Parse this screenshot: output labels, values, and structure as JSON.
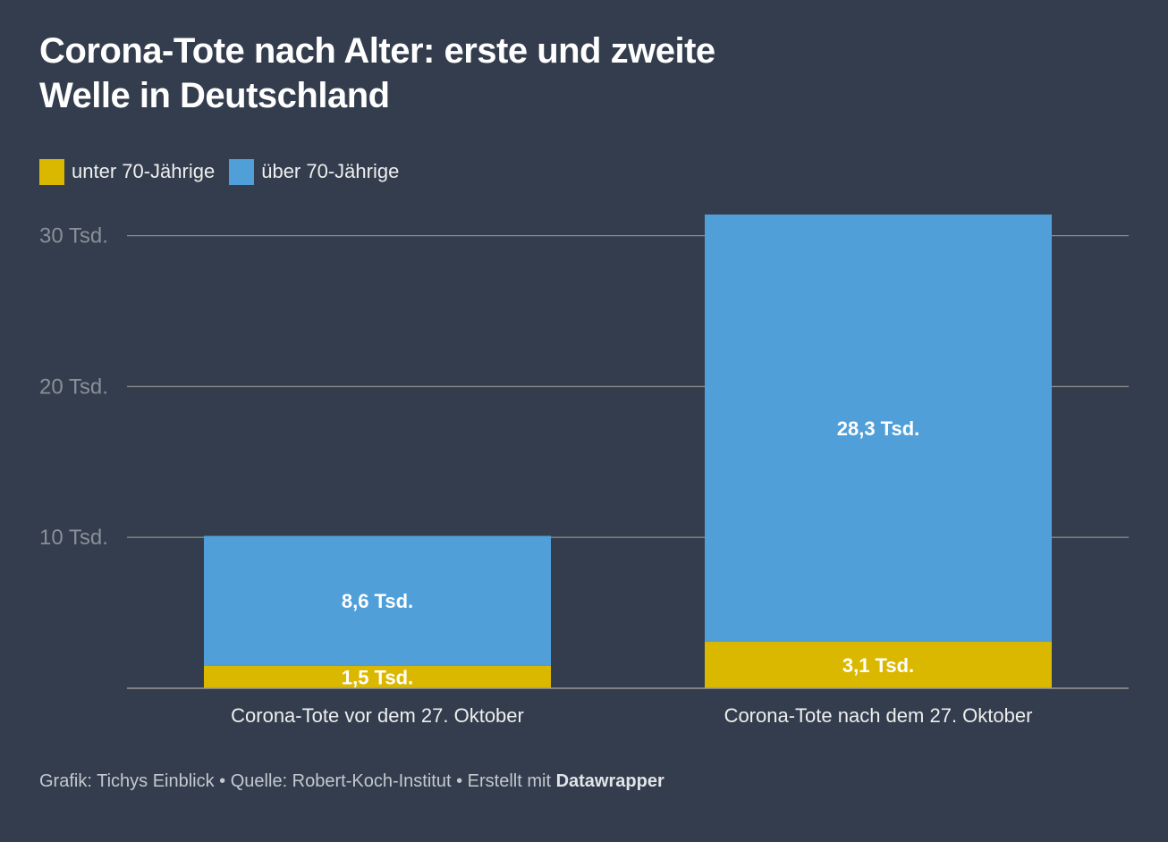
{
  "title": "Corona-Tote nach Alter: erste und zweite Welle in Deutschland",
  "footer": {
    "credit": "Grafik: Tichys Einblick",
    "separator": "•",
    "source": "Quelle: Robert-Koch-Institut",
    "made_with": "Erstellt mit",
    "tool": "Datawrapper"
  },
  "colors": {
    "background": "#333d4d",
    "under70": "#dbb800",
    "over70": "#509fd8",
    "grid": "#888888",
    "tick_label": "#8a8f98"
  },
  "chart_data": {
    "type": "bar",
    "stacked": true,
    "categories": [
      "Corona-Tote vor dem 27. Oktober",
      "Corona-Tote nach dem 27. Oktober"
    ],
    "series": [
      {
        "name": "unter 70-Jährige",
        "values": [
          1.5,
          3.1
        ],
        "labels": [
          "1,5 Tsd.",
          "3,1 Tsd."
        ],
        "color": "#dbb800"
      },
      {
        "name": "über 70-Jährige",
        "values": [
          8.6,
          28.3
        ],
        "labels": [
          "8,6 Tsd.",
          "28,3 Tsd."
        ],
        "color": "#509fd8"
      }
    ],
    "yticks": [
      10,
      20,
      30
    ],
    "ytick_labels": [
      "10 Tsd.",
      "20 Tsd.",
      "30 Tsd."
    ],
    "ylim": [
      0,
      31.4
    ],
    "grid": true,
    "legend_position": "top-left"
  }
}
